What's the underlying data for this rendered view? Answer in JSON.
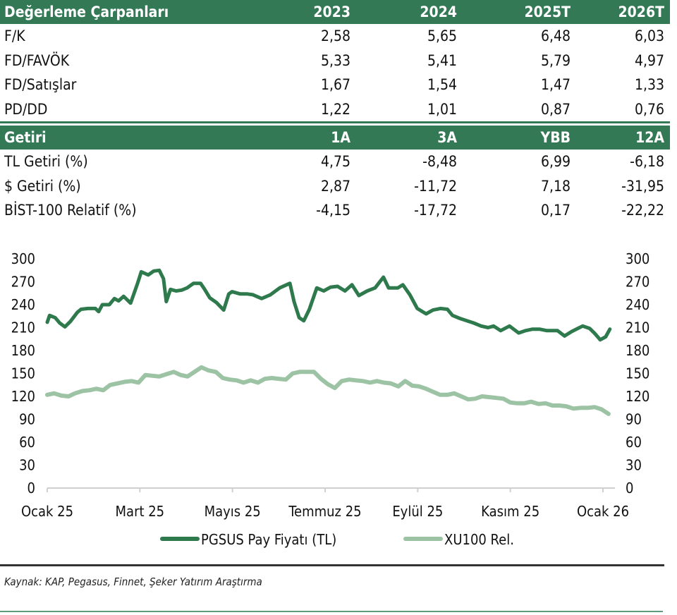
{
  "valuation_table": {
    "header": {
      "label": "Değerleme Çarpanları",
      "cols": [
        "2023",
        "2024",
        "2025T",
        "2026T"
      ]
    },
    "rows": [
      {
        "label": "F/K",
        "values": [
          "2,58",
          "5,65",
          "6,48",
          "6,03"
        ]
      },
      {
        "label": "FD/FAVÖK",
        "values": [
          "5,33",
          "5,41",
          "5,79",
          "4,97"
        ]
      },
      {
        "label": "FD/Satışlar",
        "values": [
          "1,67",
          "1,54",
          "1,47",
          "1,33"
        ]
      },
      {
        "label": "PD/DD",
        "values": [
          "1,22",
          "1,01",
          "0,87",
          "0,76"
        ]
      }
    ]
  },
  "returns_table": {
    "header": {
      "label": "Getiri",
      "cols": [
        "1A",
        "3A",
        "YBB",
        "12A"
      ]
    },
    "rows": [
      {
        "label": "TL Getiri (%)",
        "values": [
          "4,75",
          "-8,48",
          "6,99",
          "-6,18"
        ]
      },
      {
        "label": "$ Getiri (%)",
        "values": [
          "2,87",
          "-11,72",
          "7,18",
          "-31,95"
        ]
      },
      {
        "label": "BİST-100 Relatif (%)",
        "values": [
          "-4,15",
          "-17,72",
          "0,17",
          "-22,22"
        ]
      }
    ]
  },
  "colors": {
    "header_bg": "#347956",
    "series_main": "#2e7a4d",
    "series_rel": "#9dc3a5",
    "axis": "#d0d0d0"
  },
  "chart_data": {
    "type": "line",
    "title": "",
    "xlabel": "",
    "ylabel": "",
    "ylim": [
      0,
      300
    ],
    "y_ticks": [
      0,
      30,
      60,
      90,
      120,
      150,
      180,
      210,
      240,
      270,
      300
    ],
    "y_tick_labels": [
      "0",
      "30",
      "60",
      "90",
      "120",
      "150",
      "180",
      "210",
      "240",
      "270",
      "300"
    ],
    "secondary_y_ticks": [
      "0",
      "30",
      "60",
      "90",
      "120",
      "150",
      "180",
      "210",
      "240",
      "270",
      "300"
    ],
    "x_range_months": [
      0,
      12.2
    ],
    "x_ticks": [
      0,
      2,
      4,
      6,
      8,
      10,
      12
    ],
    "x_tick_labels": [
      "Ocak 25",
      "Mart 25",
      "Mayıs 25",
      "Temmuz 25",
      "Eylül 25",
      "Kasım 25",
      "Ocak 26"
    ],
    "grid": false,
    "legend_position": "bottom",
    "series": [
      {
        "name": "PGSUS Pay Fiyatı (TL)",
        "x": [
          0,
          0.05,
          0.17,
          0.27,
          0.38,
          0.5,
          0.65,
          0.73,
          0.88,
          1.04,
          1.11,
          1.19,
          1.34,
          1.45,
          1.54,
          1.65,
          1.8,
          1.95,
          2.03,
          2.18,
          2.3,
          2.42,
          2.51,
          2.57,
          2.66,
          2.78,
          2.9,
          3.02,
          3.16,
          3.31,
          3.39,
          3.51,
          3.65,
          3.81,
          3.92,
          3.99,
          4.17,
          4.32,
          4.44,
          4.63,
          4.82,
          5.02,
          5.24,
          5.33,
          5.44,
          5.54,
          5.66,
          5.82,
          5.97,
          6.12,
          6.27,
          6.43,
          6.58,
          6.73,
          6.91,
          7.08,
          7.26,
          7.37,
          7.57,
          7.68,
          7.83,
          7.99,
          8.18,
          8.33,
          8.49,
          8.64,
          8.75,
          8.91,
          9.06,
          9.21,
          9.37,
          9.52,
          9.64,
          9.79,
          9.98,
          10.18,
          10.33,
          10.48,
          10.63,
          10.79,
          11.02,
          11.17,
          11.33,
          11.56,
          11.71,
          11.83,
          11.94,
          12.06,
          12.15
        ],
        "y": [
          217,
          226,
          223,
          216,
          211,
          218,
          230,
          234,
          235,
          235,
          231,
          240,
          240,
          248,
          245,
          251,
          242,
          268,
          283,
          279,
          284,
          285,
          274,
          244,
          260,
          258,
          259,
          262,
          268,
          268,
          261,
          249,
          243,
          233,
          254,
          257,
          254,
          254,
          253,
          248,
          253,
          262,
          268,
          244,
          223,
          219,
          234,
          262,
          258,
          263,
          264,
          258,
          266,
          252,
          258,
          262,
          276,
          262,
          262,
          266,
          253,
          235,
          228,
          233,
          235,
          234,
          226,
          222,
          219,
          216,
          212,
          210,
          212,
          206,
          212,
          203,
          206,
          208,
          208,
          206,
          206,
          199,
          205,
          212,
          209,
          202,
          194,
          198,
          208
        ]
      },
      {
        "name": "XU100 Rel.",
        "x": [
          0,
          0.15,
          0.3,
          0.46,
          0.6,
          0.76,
          0.91,
          1.06,
          1.21,
          1.36,
          1.52,
          1.67,
          1.82,
          1.97,
          2.12,
          2.27,
          2.42,
          2.57,
          2.73,
          2.88,
          3.03,
          3.18,
          3.33,
          3.48,
          3.64,
          3.79,
          3.94,
          4.09,
          4.24,
          4.39,
          4.55,
          4.7,
          4.85,
          5.0,
          5.15,
          5.3,
          5.45,
          5.61,
          5.76,
          5.91,
          6.06,
          6.21,
          6.36,
          6.52,
          6.67,
          6.82,
          6.97,
          7.12,
          7.27,
          7.42,
          7.58,
          7.73,
          7.88,
          8.03,
          8.18,
          8.33,
          8.48,
          8.64,
          8.79,
          8.94,
          9.09,
          9.24,
          9.39,
          9.55,
          9.7,
          9.85,
          10.0,
          10.15,
          10.3,
          10.45,
          10.61,
          10.76,
          10.91,
          11.06,
          11.21,
          11.36,
          11.52,
          11.67,
          11.82,
          11.97,
          12.12
        ],
        "y": [
          122,
          124,
          121,
          120,
          124,
          127,
          128,
          130,
          128,
          135,
          137,
          139,
          140,
          138,
          148,
          147,
          146,
          149,
          152,
          148,
          146,
          152,
          158,
          154,
          152,
          144,
          142,
          141,
          138,
          141,
          138,
          143,
          144,
          143,
          142,
          150,
          152,
          152,
          152,
          143,
          136,
          131,
          140,
          142,
          141,
          140,
          138,
          140,
          138,
          137,
          133,
          140,
          134,
          133,
          130,
          126,
          122,
          122,
          124,
          120,
          116,
          117,
          120,
          119,
          118,
          117,
          112,
          111,
          111,
          113,
          110,
          111,
          108,
          108,
          107,
          104,
          105,
          105,
          106,
          103,
          97
        ]
      }
    ]
  },
  "legend": {
    "main": "PGSUS Pay Fiyatı (TL)",
    "rel": "XU100 Rel."
  },
  "source_note": "Kaynak: KAP, Pegasus, Finnet, Şeker Yatırım Araştırma"
}
